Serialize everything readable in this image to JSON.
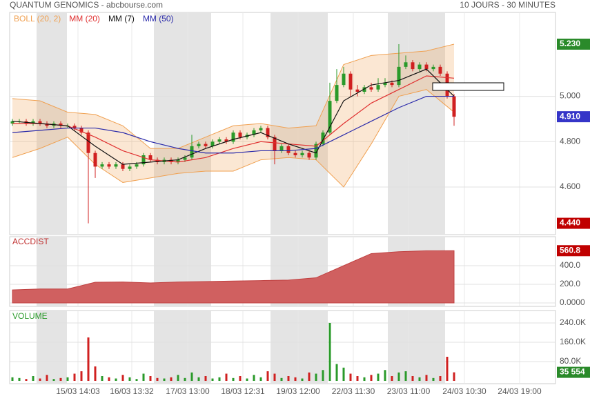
{
  "header": {
    "title": "QUANTUM GENOMICS - abcbourse.com",
    "period": "10 JOURS - 30 MINUTES"
  },
  "chart_data": [
    {
      "type": "candlestick",
      "xlim": [
        -0.4,
        78.7
      ],
      "xticks": [
        {
          "value": 9.5,
          "label": "15/03 14:03"
        },
        {
          "value": 17.3,
          "label": "16/03 13:32"
        },
        {
          "value": 25.4,
          "label": "17/03 13:00"
        },
        {
          "value": 33.4,
          "label": "18/03 12:31"
        },
        {
          "value": 41.4,
          "label": "19/03 12:00"
        },
        {
          "value": 49.4,
          "label": "22/03 11:30"
        },
        {
          "value": 57.4,
          "label": "23/03 11:00"
        },
        {
          "value": 65.5,
          "label": "24/03 10:30"
        },
        {
          "value": 73.5,
          "label": "24/03 19:00"
        }
      ],
      "ylim": [
        4.39,
        5.37
      ],
      "yticks": [
        {
          "value": 4.6,
          "label": "4.600"
        },
        {
          "value": 4.8,
          "label": "4.800"
        },
        {
          "value": 5.0,
          "label": "5.000"
        }
      ],
      "up_color": "#2a9a2a",
      "down_color": "#d02020",
      "open": [
        4.88,
        4.89,
        4.89,
        4.88,
        4.89,
        4.88,
        4.87,
        4.88,
        4.87,
        4.87,
        4.86,
        4.84,
        4.75,
        4.69,
        4.7,
        4.69,
        4.7,
        4.68,
        4.69,
        4.7,
        4.74,
        4.72,
        4.71,
        4.72,
        4.71,
        4.72,
        4.73,
        4.78,
        4.79,
        4.78,
        4.8,
        4.81,
        4.8,
        4.84,
        4.82,
        4.83,
        4.85,
        4.86,
        4.82,
        4.76,
        4.78,
        4.75,
        4.74,
        4.75,
        4.73,
        4.79,
        4.84,
        4.98,
        5.05,
        5.1,
        5.03,
        5.02,
        5.04,
        5.03,
        5.05,
        5.06,
        5.05,
        5.13,
        5.15,
        5.12,
        5.14,
        5.12,
        5.13,
        5.1,
        5.0
      ],
      "high": [
        4.9,
        4.9,
        4.9,
        4.9,
        4.9,
        4.89,
        4.89,
        4.89,
        4.88,
        4.88,
        4.87,
        4.85,
        4.76,
        4.71,
        4.71,
        4.71,
        4.71,
        4.7,
        4.71,
        4.75,
        4.75,
        4.73,
        4.73,
        4.73,
        4.73,
        4.74,
        4.83,
        4.8,
        4.8,
        4.81,
        4.82,
        4.82,
        4.85,
        4.85,
        4.84,
        4.86,
        4.87,
        4.87,
        4.83,
        4.79,
        4.79,
        4.76,
        4.76,
        4.76,
        4.8,
        4.85,
        5.06,
        5.12,
        5.13,
        5.11,
        5.05,
        5.05,
        5.06,
        5.08,
        5.08,
        5.07,
        5.23,
        5.18,
        5.16,
        5.15,
        5.15,
        5.14,
        5.14,
        5.11,
        5.01
      ],
      "low": [
        4.87,
        4.88,
        4.87,
        4.87,
        4.87,
        4.86,
        4.86,
        4.86,
        4.86,
        4.85,
        4.83,
        4.44,
        4.64,
        4.68,
        4.68,
        4.68,
        4.67,
        4.67,
        4.68,
        4.69,
        4.71,
        4.7,
        4.7,
        4.7,
        4.7,
        4.71,
        4.72,
        4.77,
        4.77,
        4.77,
        4.79,
        4.79,
        4.79,
        4.81,
        4.81,
        4.82,
        4.84,
        4.81,
        4.7,
        4.75,
        4.74,
        4.73,
        4.73,
        4.72,
        4.72,
        4.78,
        4.83,
        4.97,
        5.04,
        5.0,
        5.0,
        5.01,
        5.02,
        5.02,
        5.04,
        5.04,
        5.04,
        5.12,
        5.11,
        5.11,
        5.11,
        5.11,
        5.09,
        4.99,
        4.87
      ],
      "close": [
        4.89,
        4.89,
        4.88,
        4.89,
        4.88,
        4.87,
        4.88,
        4.87,
        4.87,
        4.86,
        4.84,
        4.75,
        4.69,
        4.7,
        4.69,
        4.7,
        4.68,
        4.69,
        4.7,
        4.74,
        4.72,
        4.71,
        4.72,
        4.71,
        4.72,
        4.73,
        4.78,
        4.79,
        4.78,
        4.8,
        4.81,
        4.8,
        4.84,
        4.82,
        4.83,
        4.85,
        4.86,
        4.82,
        4.76,
        4.78,
        4.75,
        4.74,
        4.75,
        4.73,
        4.79,
        4.84,
        4.98,
        5.05,
        5.1,
        5.03,
        5.02,
        5.04,
        5.03,
        5.05,
        5.06,
        5.05,
        5.13,
        5.15,
        5.12,
        5.14,
        5.12,
        5.13,
        5.1,
        5.0,
        4.91
      ],
      "overlay_x": [
        0,
        4,
        8,
        12,
        16,
        20,
        24,
        28,
        32,
        36,
        40,
        44,
        48,
        52,
        56,
        60,
        64
      ],
      "bands": [
        {
          "name": "BOLL (20, 2)",
          "color": "#f0a050",
          "upper": [
            4.99,
            4.98,
            4.93,
            4.92,
            4.87,
            4.77,
            4.77,
            4.82,
            4.87,
            4.88,
            4.86,
            4.87,
            5.14,
            5.18,
            5.19,
            5.2,
            5.23
          ],
          "lower": [
            4.73,
            4.77,
            4.82,
            4.7,
            4.62,
            4.64,
            4.66,
            4.67,
            4.67,
            4.72,
            4.73,
            4.72,
            4.6,
            4.79,
            5.0,
            5.03,
            4.93
          ]
        }
      ],
      "series": [
        {
          "name": "MM (20)",
          "color": "#e03030",
          "values": [
            4.88,
            4.88,
            4.87,
            4.82,
            4.76,
            4.72,
            4.71,
            4.73,
            4.77,
            4.8,
            4.79,
            4.78,
            4.88,
            4.97,
            5.03,
            5.09,
            5.08
          ]
        },
        {
          "name": "MM (7)",
          "color": "#111111",
          "values": [
            4.89,
            4.88,
            4.87,
            4.78,
            4.7,
            4.71,
            4.72,
            4.77,
            4.81,
            4.84,
            4.79,
            4.75,
            4.98,
            5.05,
            5.07,
            5.12,
            5.0
          ]
        },
        {
          "name": "MM (50)",
          "color": "#2a2aaa",
          "values": [
            4.84,
            4.85,
            4.86,
            4.86,
            4.84,
            4.8,
            4.77,
            4.75,
            4.75,
            4.76,
            4.76,
            4.77,
            4.83,
            4.89,
            4.95,
            5.0,
            5.0
          ]
        }
      ],
      "price_labels": [
        {
          "value": 5.23,
          "label": "5.230",
          "color": "#2a8a2a"
        },
        {
          "value": 4.91,
          "label": "4.910",
          "color": "#3535c8"
        },
        {
          "value": 4.44,
          "label": "4.440",
          "color": "#c00000"
        }
      ]
    },
    {
      "type": "area",
      "title": "ACCDIST",
      "color": "#d06060",
      "x": [
        0,
        4,
        8,
        12,
        16,
        20,
        24,
        28,
        32,
        36,
        40,
        44,
        48,
        52,
        56,
        60,
        64
      ],
      "values": [
        140,
        150,
        150,
        222,
        225,
        215,
        225,
        230,
        235,
        240,
        245,
        270,
        400,
        530,
        550,
        560,
        560.8
      ],
      "ylim": [
        -37,
        711
      ],
      "yticks": [
        {
          "value": 0,
          "label": "0.0000"
        },
        {
          "value": 200,
          "label": "200.0"
        },
        {
          "value": 400,
          "label": "400.0"
        }
      ],
      "last_label": {
        "value": 560.8,
        "label": "560.8",
        "color": "#c00000"
      }
    },
    {
      "type": "bar",
      "title": "VOLUME",
      "values": [
        15000,
        12000,
        8000,
        20000,
        10000,
        25000,
        8000,
        12000,
        15000,
        30000,
        40000,
        180000,
        60000,
        20000,
        15000,
        10000,
        25000,
        15000,
        8000,
        30000,
        20000,
        12000,
        10000,
        15000,
        25000,
        12000,
        35000,
        15000,
        20000,
        10000,
        15000,
        30000,
        12000,
        20000,
        10000,
        25000,
        15000,
        40000,
        30000,
        12000,
        20000,
        15000,
        10000,
        35000,
        30000,
        45000,
        240000,
        70000,
        55000,
        30000,
        20000,
        15000,
        25000,
        30000,
        45000,
        20000,
        35000,
        40000,
        20000,
        15000,
        25000,
        12000,
        20000,
        100000,
        35554
      ],
      "ylim": [
        -11400,
        291400
      ],
      "yticks": [
        {
          "value": 80000,
          "label": "80.0K"
        },
        {
          "value": 160000,
          "label": "160.0K"
        },
        {
          "value": 240000,
          "label": "240.0K"
        }
      ],
      "last_label": {
        "value": 35554,
        "label": "35 554",
        "color": "#2a8a2a"
      }
    }
  ]
}
